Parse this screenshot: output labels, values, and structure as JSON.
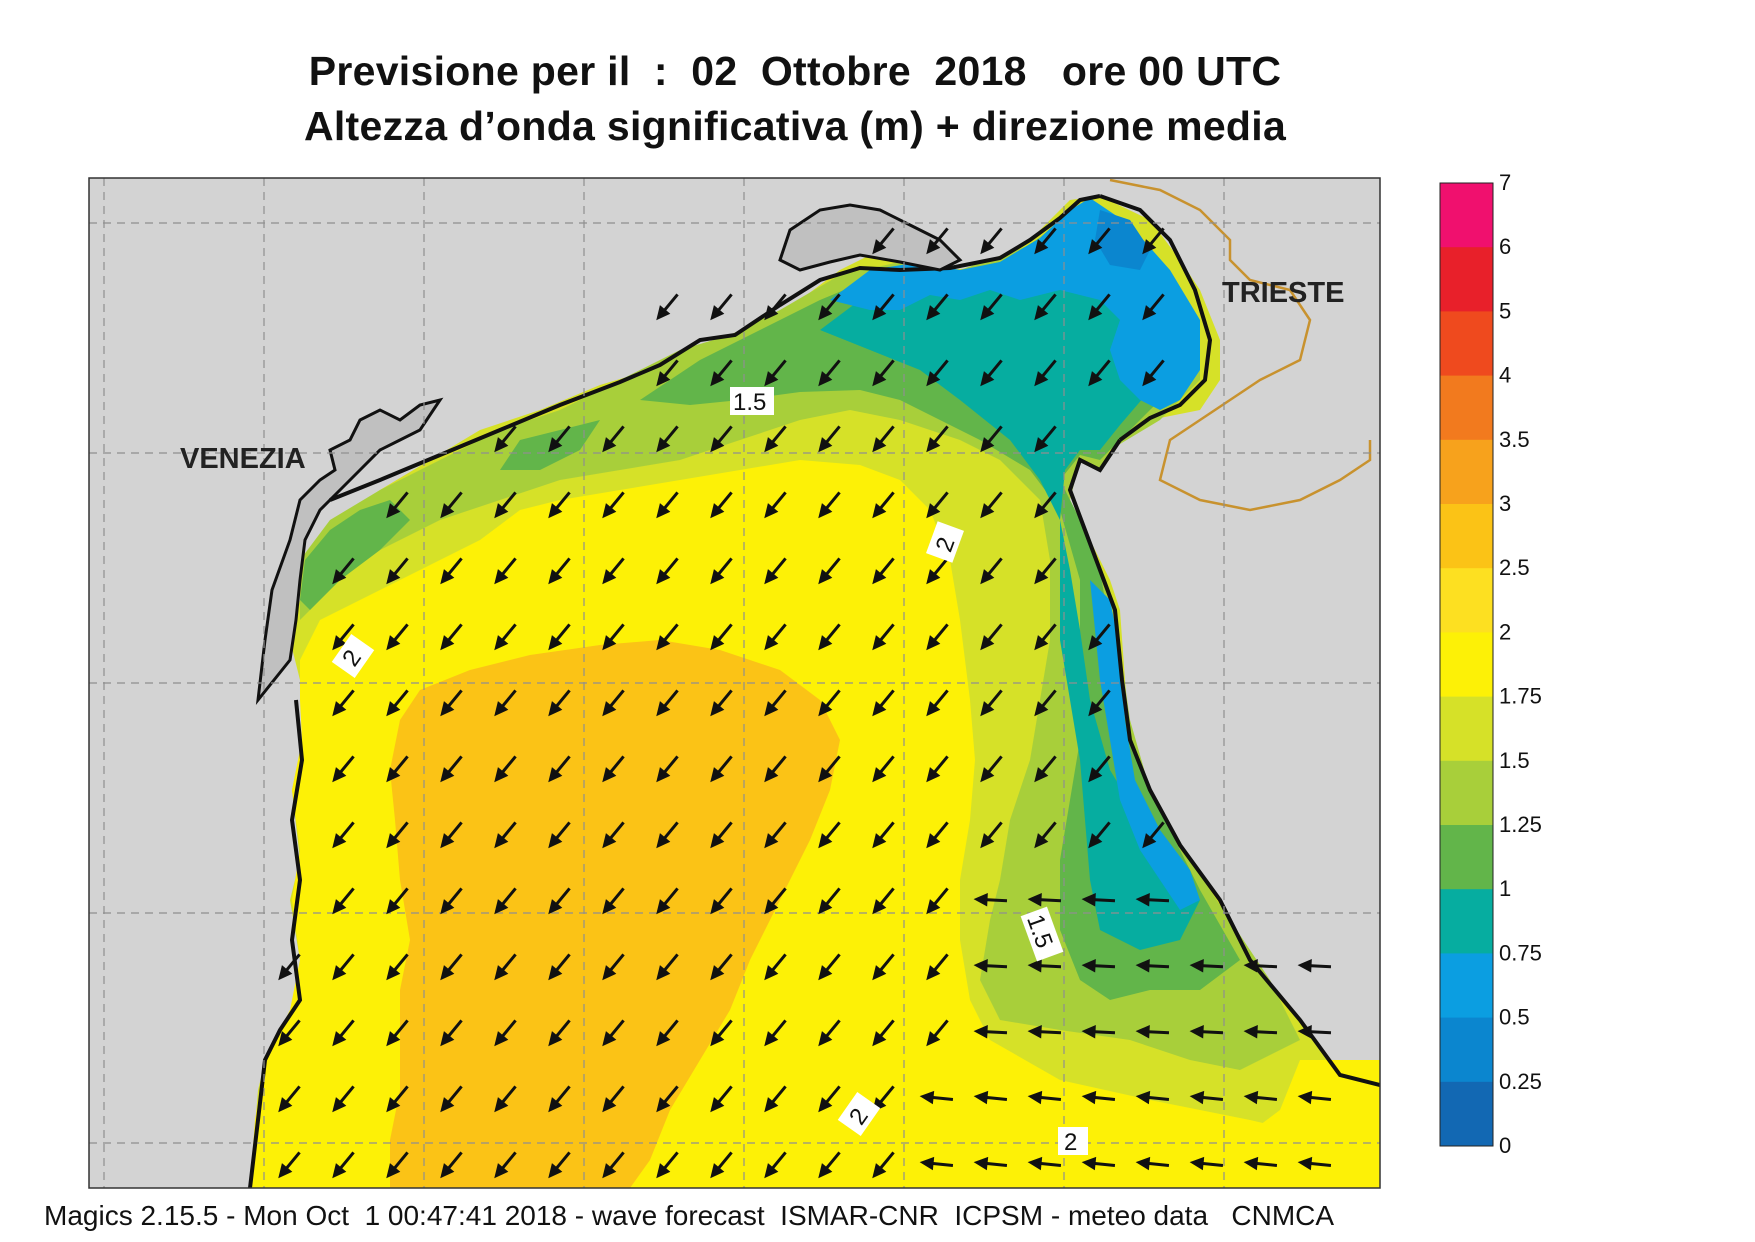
{
  "title": {
    "line1": "Previsione per il  :  02  Ottobre  2018   ore 00 UTC",
    "line2": "Altezza d’onda significativa (m) + direzione media"
  },
  "map_labels": {
    "venezia": "VENEZIA",
    "trieste": "TRIESTE"
  },
  "contour_labels": [
    "1.5",
    "2",
    "2",
    "1.5",
    "2",
    "2"
  ],
  "colorbar": {
    "levels": [
      "7",
      "6",
      "5",
      "4",
      "3.5",
      "3",
      "2.5",
      "2",
      "1.75",
      "1.5",
      "1.25",
      "1",
      "0.75",
      "0.5",
      "0.25",
      "0"
    ],
    "colors": [
      "#f0106e",
      "#e8202a",
      "#ef4a1e",
      "#f27a1e",
      "#f7a21c",
      "#fbc316",
      "#fde021",
      "#fdf106",
      "#d6e128",
      "#a8cf3a",
      "#62b54a",
      "#06ada0",
      "#0b9ee1",
      "#0b86cf",
      "#1268b3",
      "#1a5aa8"
    ]
  },
  "footer": "Magics 2.15.5 - Mon Oct  1 00:47:41 2018 - wave forecast  ISMAR-CNR  ICPSM - meteo data   CNMCA",
  "colors": {
    "land": "#d3d3d3",
    "yellow": "#fdf106",
    "orange_yellow": "#fbc316",
    "light_green": "#d6e128",
    "green": "#a8cf3a",
    "dark_green": "#62b54a",
    "teal": "#06ada0",
    "blue": "#0b9ee1",
    "border": "#c8922e"
  }
}
